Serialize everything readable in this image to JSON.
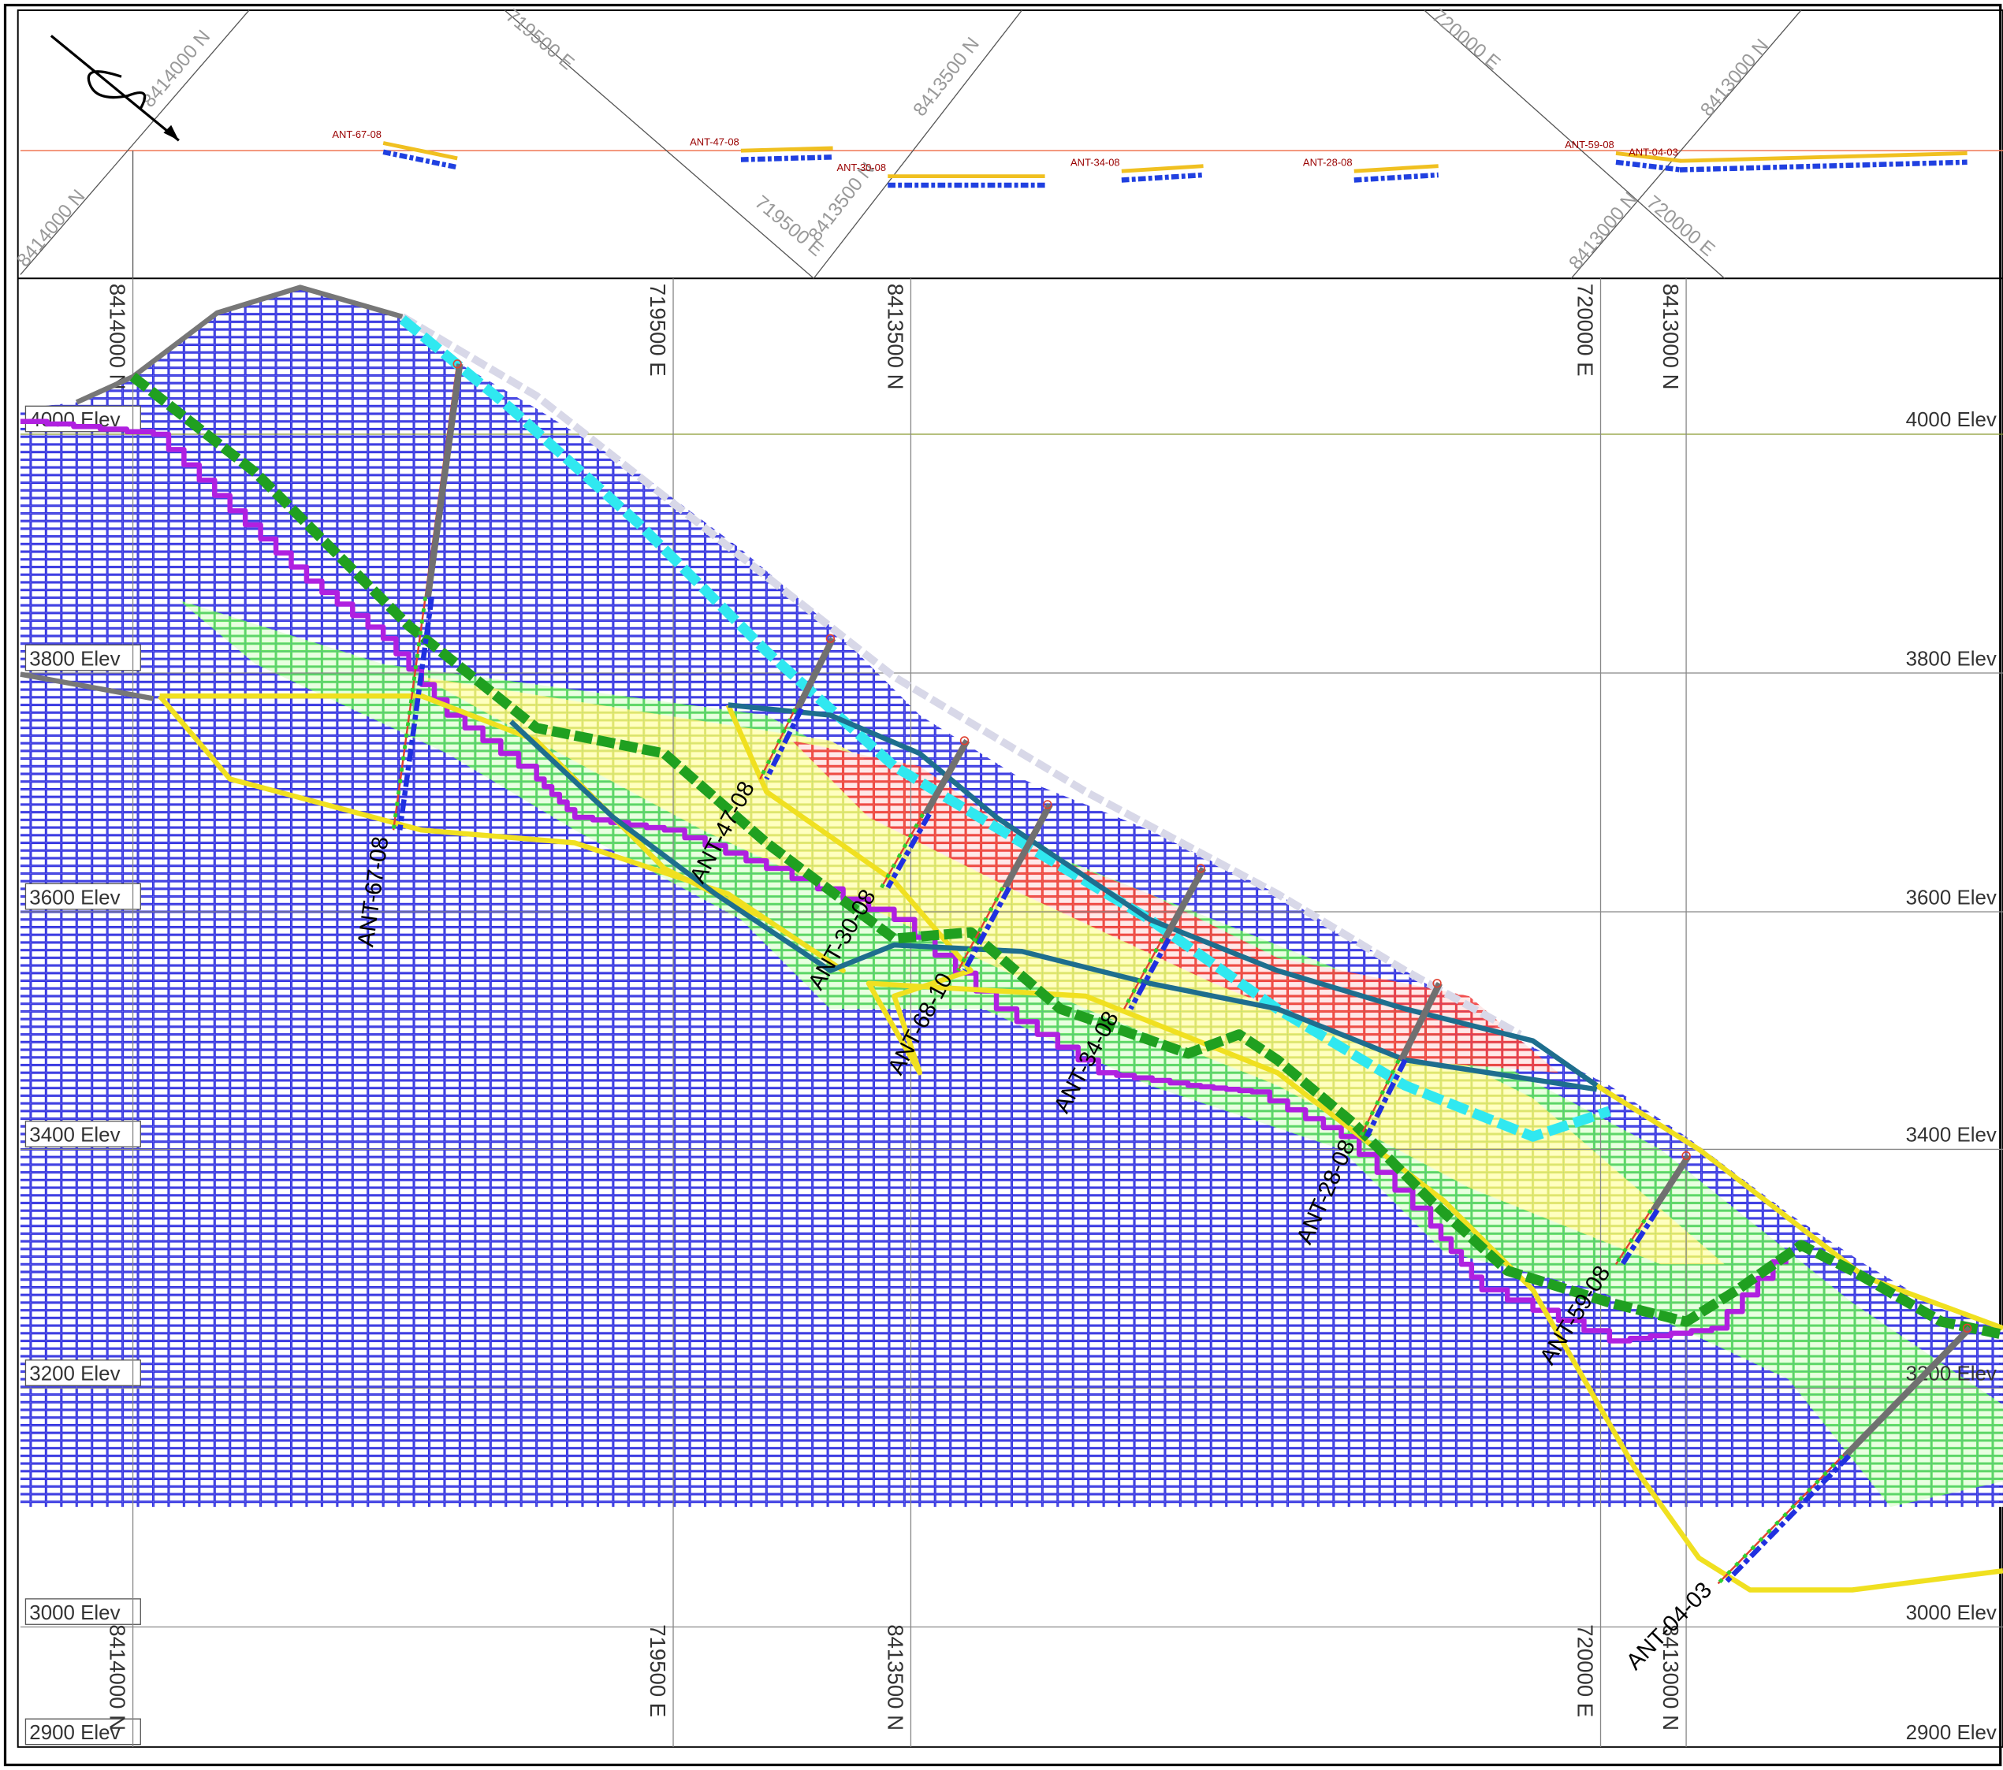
{
  "elevation_labels": [
    "4000 Elev",
    "3800 Elev",
    "3600 Elev",
    "3400 Elev",
    "3200 Elev",
    "3000 Elev",
    "2900 Elev"
  ],
  "grid_labels": [
    "8414000 N",
    "719500 E",
    "8413500 N",
    "720000 E",
    "8413000 N"
  ],
  "drill_holes": [
    "ANT-67-08",
    "ANT-47-08",
    "ANT-30-08",
    "ANT-68-10",
    "ANT-34-08",
    "ANT-28-08",
    "ANT-59-08",
    "ANT-04-03"
  ]
}
